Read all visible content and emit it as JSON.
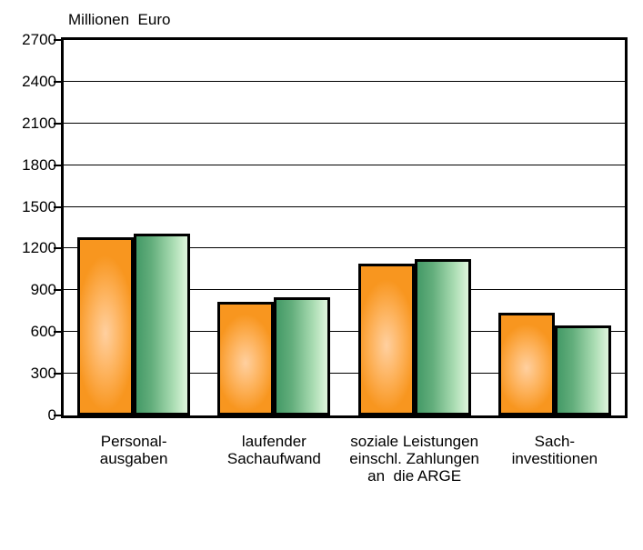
{
  "chart_data": {
    "type": "bar",
    "title": "Millionen  Euro",
    "categories": [
      "Personal-\nausgaben",
      "laufender\nSachaufwand",
      "soziale Leistungen\neinschl. Zahlungen\nan  die ARGE",
      "Sach-\ninvestitionen"
    ],
    "series": [
      {
        "name": "orange-bars",
        "color": "#f8961f",
        "values": [
          1280,
          815,
          1090,
          740
        ]
      },
      {
        "name": "green-bars",
        "color": "#449a67",
        "values": [
          1310,
          850,
          1125,
          650
        ]
      }
    ],
    "xlabel": "",
    "ylabel": "Millionen Euro",
    "ylim": [
      0,
      2700
    ],
    "yticks": [
      0,
      300,
      600,
      900,
      1200,
      1500,
      1800,
      2100,
      2400,
      2700
    ],
    "grid": true,
    "legend": "none",
    "axis_color": "#000000",
    "background_color": "#ffffff"
  }
}
